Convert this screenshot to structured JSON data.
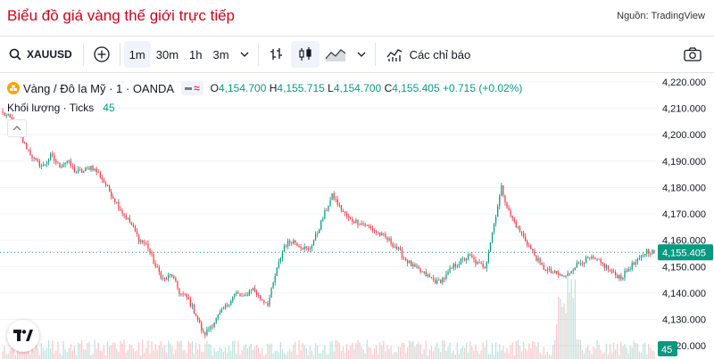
{
  "header": {
    "title": "Biểu đồ giá vàng thế giới trực tiếp",
    "source": "Nguồn: TradingView"
  },
  "toolbar": {
    "symbol": "XAUUSD",
    "intervals": [
      "1m",
      "30m",
      "1h",
      "3m"
    ],
    "active_interval": "1m",
    "indicators_label": "Các chỉ báo"
  },
  "legend": {
    "name": "Vàng / Đô la Mỹ · 1 · OANDA",
    "open_label": "O",
    "open": "4,154.700",
    "high_label": "H",
    "high": "4,155.715",
    "low_label": "L",
    "low": "4,154.700",
    "close_label": "C",
    "close": "4,155.405",
    "change": "+0.715 (+0.02%)",
    "volume_label": "Khối lượng · Ticks",
    "volume_value": "45"
  },
  "colors": {
    "up": "#089981",
    "down": "#f23645",
    "title": "#d0021b",
    "price_tag": "#089981"
  },
  "chart_data": {
    "type": "candlestick",
    "ylim": [
      4115,
      4223
    ],
    "y_ticks": [
      "4,220.000",
      "4,210.000",
      "4,200.000",
      "4,190.000",
      "4,180.000",
      "4,170.000",
      "4,160.000",
      "4,150.000",
      "4,140.000",
      "4,130.000",
      "4,120.000"
    ],
    "y_tick_values": [
      4220,
      4210,
      4200,
      4190,
      4180,
      4170,
      4160,
      4150,
      4140,
      4130,
      4120
    ],
    "last_price": 4155.405,
    "last_price_label": "4,155.405",
    "last_volume_label": "45",
    "close_path": [
      4208,
      4206,
      4200,
      4195,
      4190,
      4188,
      4192,
      4188,
      4190,
      4186,
      4186,
      4188,
      4185,
      4180,
      4175,
      4170,
      4166,
      4160,
      4158,
      4150,
      4145,
      4147,
      4140,
      4138,
      4132,
      4124,
      4128,
      4132,
      4136,
      4140,
      4138,
      4142,
      4138,
      4136,
      4148,
      4158,
      4160,
      4158,
      4156,
      4162,
      4170,
      4177,
      4172,
      4168,
      4167,
      4166,
      4164,
      4162,
      4160,
      4157,
      4153,
      4150,
      4148,
      4146,
      4144,
      4146,
      4150,
      4152,
      4154,
      4151,
      4150,
      4165,
      4180,
      4170,
      4165,
      4160,
      4155,
      4150,
      4148,
      4147,
      4146,
      4150,
      4152,
      4153,
      4152,
      4150,
      4147,
      4146,
      4150,
      4152,
      4156,
      4155.4
    ]
  }
}
